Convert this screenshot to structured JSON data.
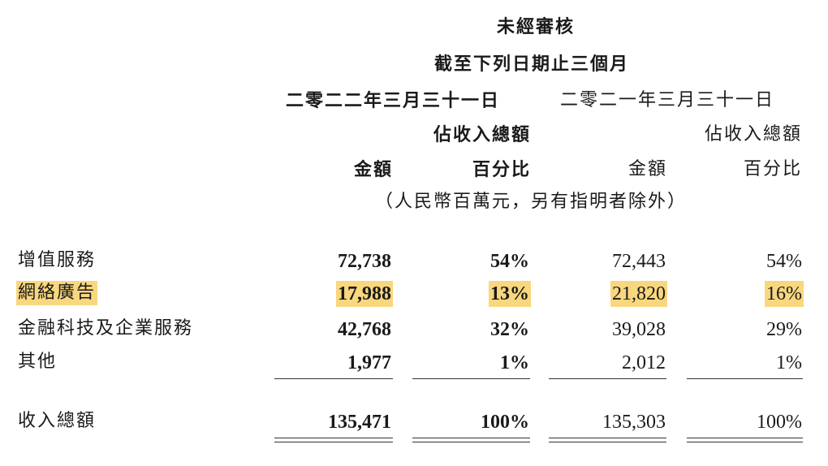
{
  "header": {
    "unaudited": "未經審核",
    "three_months_ended": "截至下列日期止三個月",
    "date_2022": "二零二二年三月三十一日",
    "date_2021": "二零二一年三月三十一日",
    "pct_of_total_2022": "佔收入總額",
    "pct_of_total_2021": "佔收入總額",
    "amount_2022": "金額",
    "percent_2022": "百分比",
    "amount_2021": "金額",
    "percent_2021": "百分比",
    "unit_note": "（人民幣百萬元，另有指明者除外）"
  },
  "rows": [
    {
      "label": "增值服務",
      "amount_2022": "72,738",
      "pct_2022": "54%",
      "amount_2021": "72,443",
      "pct_2021": "54%",
      "highlighted": false
    },
    {
      "label": "網絡廣告",
      "amount_2022": "17,988",
      "pct_2022": "13%",
      "amount_2021": "21,820",
      "pct_2021": "16%",
      "highlighted": true
    },
    {
      "label": "金融科技及企業服務",
      "amount_2022": "42,768",
      "pct_2022": "32%",
      "amount_2021": "39,028",
      "pct_2021": "29%",
      "highlighted": false
    },
    {
      "label": "其他",
      "amount_2022": "1,977",
      "pct_2022": "1%",
      "amount_2021": "2,012",
      "pct_2021": "1%",
      "highlighted": false
    }
  ],
  "total": {
    "label": "收入總額",
    "amount_2022": "135,471",
    "pct_2022": "100%",
    "amount_2021": "135,303",
    "pct_2021": "100%"
  },
  "colors": {
    "highlight": "#f9d77e",
    "text": "#1a1a1a"
  }
}
